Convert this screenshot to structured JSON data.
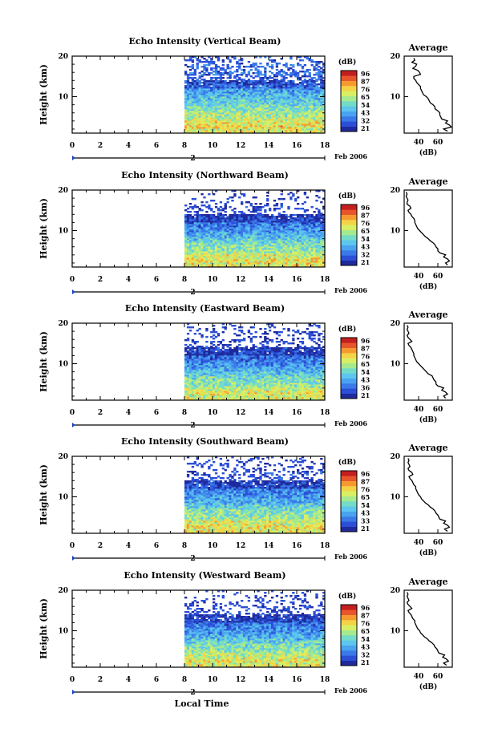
{
  "colors": {
    "scale": [
      "#1f2a9c",
      "#2b4fd8",
      "#3a7ae8",
      "#4aa3f0",
      "#5cc6ee",
      "#73dcc8",
      "#a5ea8e",
      "#d9ef63",
      "#f4d346",
      "#f69a30",
      "#e8552a",
      "#c41f1f"
    ]
  },
  "chart_data": [
    {
      "type": "heatmap",
      "title": "Echo Intensity (Vertical Beam)",
      "ylabel": "Height (km)",
      "x_ticks": [
        "0",
        "2",
        "4",
        "6",
        "8",
        "10",
        "12",
        "14",
        "16",
        "18"
      ],
      "y_ticks": [
        "10",
        "20"
      ],
      "xlim": [
        0,
        18
      ],
      "ylim": [
        1,
        20
      ],
      "data_x_range": [
        8,
        18
      ],
      "date_marker": "2",
      "date_label": "Feb 2006",
      "colorbar": {
        "label": "(dB)",
        "ticks": [
          "96",
          "87",
          "76",
          "65",
          "54",
          "43",
          "32",
          "21"
        ],
        "range": [
          21,
          96
        ]
      },
      "profile": {
        "title": "Average",
        "xlabel": "(dB)",
        "x_ticks": [
          "40",
          "60"
        ],
        "xlim": [
          25,
          75
        ],
        "y_ticks": [
          "10",
          "20"
        ],
        "ylim": [
          1,
          20
        ],
        "heights": [
          1.5,
          2,
          2.5,
          3,
          3.5,
          4,
          4.5,
          5,
          5.5,
          6,
          6.5,
          7,
          7.5,
          8,
          8.5,
          9,
          9.5,
          10,
          10.5,
          11,
          11.5,
          12,
          12.5,
          13,
          13.5,
          14,
          14.5,
          15,
          15.5,
          16,
          16.5,
          17,
          17.5,
          18,
          18.5,
          19,
          19.5
        ],
        "values": [
          70,
          66,
          74,
          72,
          68,
          70,
          64,
          63,
          62,
          62,
          60,
          57,
          57,
          55,
          52,
          51,
          50,
          48,
          45,
          44,
          43,
          42,
          42,
          40,
          38,
          37,
          35,
          35,
          42,
          41,
          39,
          34,
          37,
          38,
          33,
          36,
          35
        ]
      }
    },
    {
      "type": "heatmap",
      "title": "Echo Intensity (Northward Beam)",
      "ylabel": "Height (km)",
      "x_ticks": [
        "0",
        "2",
        "4",
        "6",
        "8",
        "10",
        "12",
        "14",
        "16",
        "18"
      ],
      "y_ticks": [
        "10",
        "20"
      ],
      "xlim": [
        0,
        18
      ],
      "ylim": [
        1,
        20
      ],
      "data_x_range": [
        8,
        18
      ],
      "date_marker": "2",
      "date_label": "Feb 2006",
      "colorbar": {
        "label": "(dB)",
        "ticks": [
          "96",
          "87",
          "76",
          "65",
          "54",
          "43",
          "32",
          "21"
        ],
        "range": [
          21,
          96
        ]
      },
      "profile": {
        "title": "Average",
        "xlabel": "(dB)",
        "x_ticks": [
          "40",
          "60"
        ],
        "xlim": [
          25,
          75
        ],
        "y_ticks": [
          "10",
          "20"
        ],
        "ylim": [
          1,
          20
        ],
        "heights": [
          1.5,
          2,
          2.5,
          3,
          3.5,
          4,
          4.5,
          5,
          5.5,
          6,
          6.5,
          7,
          7.5,
          8,
          8.5,
          9,
          9.5,
          10,
          10.5,
          11,
          11.5,
          12,
          12.5,
          13,
          13.5,
          14,
          14.5,
          15,
          15.5,
          16,
          16.5,
          17,
          17.5,
          18,
          18.5,
          19,
          19.5
        ],
        "values": [
          70,
          68,
          72,
          70,
          66,
          68,
          62,
          60,
          60,
          58,
          57,
          55,
          52,
          50,
          47,
          45,
          43,
          41,
          39,
          38,
          37,
          36,
          36,
          35,
          33,
          32,
          30,
          29,
          32,
          31,
          28,
          28,
          29,
          28,
          27,
          28,
          27
        ]
      }
    },
    {
      "type": "heatmap",
      "title": "Echo Intensity (Eastward Beam)",
      "ylabel": "Height (km)",
      "x_ticks": [
        "0",
        "2",
        "4",
        "6",
        "8",
        "10",
        "12",
        "14",
        "16",
        "18"
      ],
      "y_ticks": [
        "10",
        "20"
      ],
      "xlim": [
        0,
        18
      ],
      "ylim": [
        1,
        20
      ],
      "data_x_range": [
        8,
        18
      ],
      "date_marker": "2",
      "date_label": "Feb 2006",
      "colorbar": {
        "label": "(dB)",
        "ticks": [
          "96",
          "87",
          "76",
          "65",
          "54",
          "43",
          "36",
          "21"
        ],
        "range": [
          21,
          96
        ]
      },
      "profile": {
        "title": "Average",
        "xlabel": "(dB)",
        "x_ticks": [
          "40",
          "60"
        ],
        "xlim": [
          25,
          75
        ],
        "y_ticks": [
          "10",
          "20"
        ],
        "ylim": [
          1,
          20
        ],
        "heights": [
          1.5,
          2,
          2.5,
          3,
          3.5,
          4,
          4.5,
          5,
          5.5,
          6,
          6.5,
          7,
          7.5,
          8,
          8.5,
          9,
          9.5,
          10,
          10.5,
          11,
          11.5,
          12,
          12.5,
          13,
          13.5,
          14,
          14.5,
          15,
          15.5,
          16,
          16.5,
          17,
          17.5,
          18,
          18.5,
          19,
          19.5
        ],
        "values": [
          68,
          66,
          70,
          68,
          64,
          66,
          60,
          58,
          58,
          56,
          55,
          54,
          50,
          48,
          46,
          44,
          42,
          40,
          38,
          37,
          36,
          35,
          35,
          34,
          33,
          32,
          30,
          29,
          33,
          31,
          29,
          28,
          30,
          29,
          28,
          29,
          28
        ]
      }
    },
    {
      "type": "heatmap",
      "title": "Echo Intensity (Southward Beam)",
      "ylabel": "Height (km)",
      "x_ticks": [
        "0",
        "2",
        "4",
        "6",
        "8",
        "10",
        "12",
        "14",
        "16",
        "18"
      ],
      "y_ticks": [
        "10",
        "20"
      ],
      "xlim": [
        0,
        18
      ],
      "ylim": [
        1,
        20
      ],
      "data_x_range": [
        8,
        18
      ],
      "date_marker": "2",
      "date_label": "Feb 2006",
      "colorbar": {
        "label": "(dB)",
        "ticks": [
          "96",
          "87",
          "76",
          "65",
          "54",
          "43",
          "33",
          "21"
        ],
        "range": [
          21,
          96
        ]
      },
      "profile": {
        "title": "Average",
        "xlabel": "(dB)",
        "x_ticks": [
          "40",
          "60"
        ],
        "xlim": [
          25,
          75
        ],
        "y_ticks": [
          "10",
          "20"
        ],
        "ylim": [
          1,
          20
        ],
        "heights": [
          1.5,
          2,
          2.5,
          3,
          3.5,
          4,
          4.5,
          5,
          5.5,
          6,
          6.5,
          7,
          7.5,
          8,
          8.5,
          9,
          9.5,
          10,
          10.5,
          11,
          11.5,
          12,
          12.5,
          13,
          13.5,
          14,
          14.5,
          15,
          15.5,
          16,
          16.5,
          17,
          17.5,
          18,
          18.5,
          19,
          19.5
        ],
        "values": [
          70,
          67,
          72,
          70,
          66,
          68,
          62,
          61,
          60,
          58,
          57,
          55,
          52,
          50,
          47,
          45,
          43,
          42,
          40,
          39,
          38,
          37,
          37,
          35,
          34,
          33,
          31,
          30,
          34,
          33,
          30,
          29,
          31,
          30,
          29,
          30,
          29
        ]
      }
    },
    {
      "type": "heatmap",
      "title": "Echo Intensity (Westward Beam)",
      "ylabel": "Height (km)",
      "xlabel": "Local Time",
      "x_ticks": [
        "0",
        "2",
        "4",
        "6",
        "8",
        "10",
        "12",
        "14",
        "16",
        "18"
      ],
      "y_ticks": [
        "10",
        "20"
      ],
      "xlim": [
        0,
        18
      ],
      "ylim": [
        1,
        20
      ],
      "data_x_range": [
        8,
        18
      ],
      "date_marker": "2",
      "date_label": "Feb 2006",
      "colorbar": {
        "label": "(dB)",
        "ticks": [
          "96",
          "87",
          "76",
          "65",
          "54",
          "43",
          "32",
          "21"
        ],
        "range": [
          21,
          96
        ]
      },
      "profile": {
        "title": "Average",
        "xlabel": "(dB)",
        "x_ticks": [
          "40",
          "60"
        ],
        "xlim": [
          25,
          75
        ],
        "y_ticks": [
          "10",
          "20"
        ],
        "ylim": [
          1,
          20
        ],
        "heights": [
          1.5,
          2,
          2.5,
          3,
          3.5,
          4,
          4.5,
          5,
          5.5,
          6,
          6.5,
          7,
          7.5,
          8,
          8.5,
          9,
          9.5,
          10,
          10.5,
          11,
          11.5,
          12,
          12.5,
          13,
          13.5,
          14,
          14.5,
          15,
          15.5,
          16,
          16.5,
          17,
          17.5,
          18,
          18.5,
          19,
          19.5
        ],
        "values": [
          69,
          66,
          71,
          69,
          65,
          67,
          61,
          60,
          59,
          57,
          56,
          54,
          51,
          49,
          46,
          44,
          42,
          41,
          39,
          38,
          37,
          36,
          36,
          34,
          33,
          32,
          30,
          29,
          33,
          31,
          29,
          28,
          30,
          29,
          28,
          29,
          28
        ]
      }
    }
  ]
}
